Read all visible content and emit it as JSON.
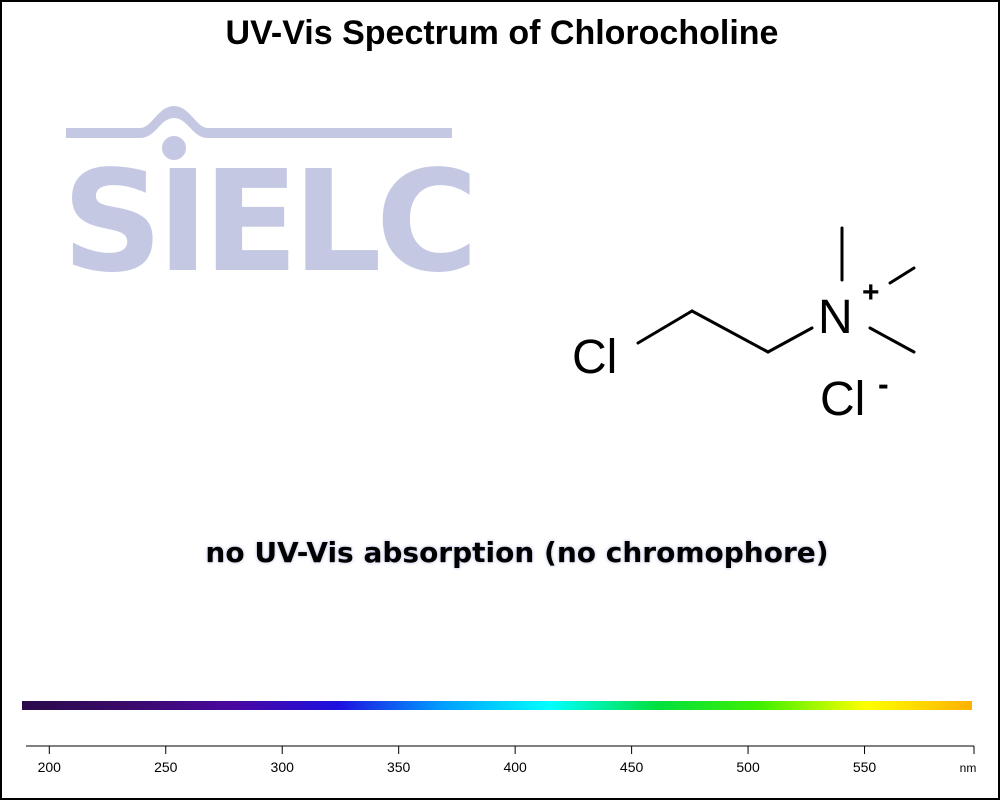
{
  "chart_data": {
    "type": "line",
    "title": "UV-Vis Spectrum of Chlorocholine",
    "xlabel": "",
    "ylabel": "",
    "x_unit": "nm",
    "xlim": [
      190,
      597
    ],
    "x_ticks": [
      200,
      250,
      300,
      350,
      400,
      450,
      500,
      550
    ],
    "series": [],
    "annotations": [
      "no UV-Vis absorption (no chromophore)"
    ]
  },
  "logo": {
    "text": "SIELC",
    "color": "#c5c8e3"
  },
  "structure": {
    "cl_left": "Cl",
    "n_atom": "N",
    "n_charge": "+",
    "cl_ion": "Cl",
    "cl_ion_charge": "-"
  },
  "colors": {
    "spectrum": [
      "#2a0a4a",
      "#3a0a6a",
      "#4a08a0",
      "#1e10e0",
      "#00a0ff",
      "#00ffff",
      "#00e040",
      "#40f000",
      "#ffff00",
      "#ffb000"
    ]
  }
}
